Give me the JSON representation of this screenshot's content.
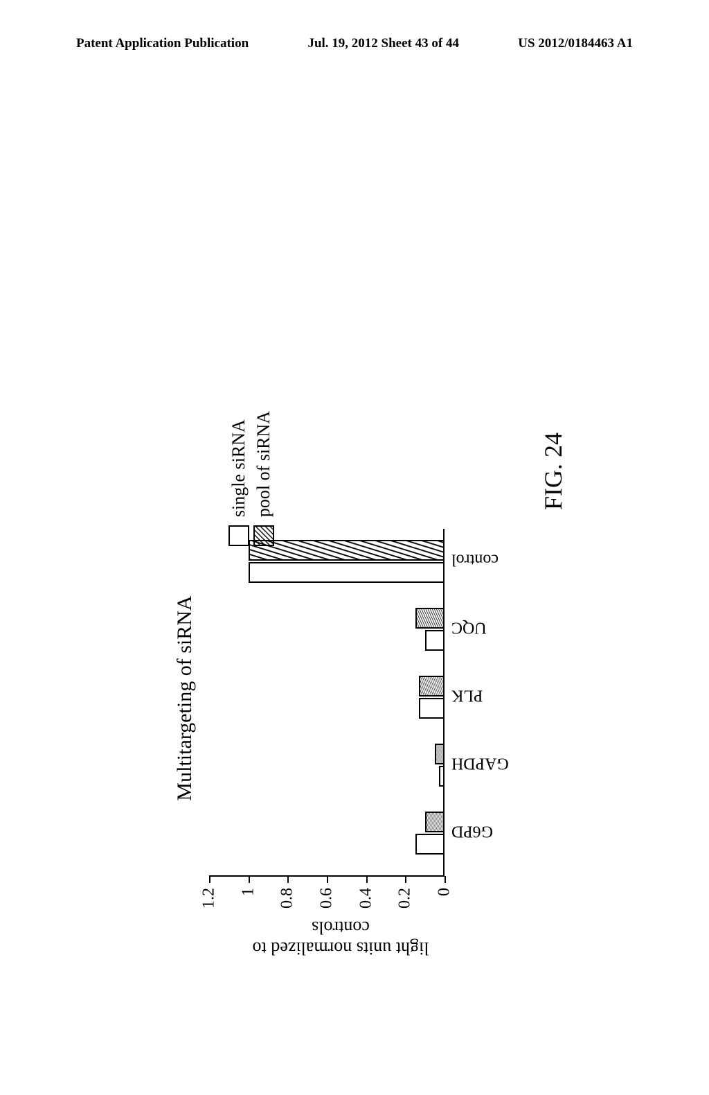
{
  "header": {
    "left": "Patent Application Publication",
    "center": "Jul. 19, 2012  Sheet 43 of 44",
    "right": "US 2012/0184463 A1"
  },
  "figure": {
    "caption": "FIG. 24",
    "chart": {
      "type": "bar",
      "title": "Multitargeting of siRNA",
      "y_axis_title": "light units normalized to\ncontrols",
      "ylim": [
        0,
        1.2
      ],
      "yticks": [
        0,
        0.2,
        0.4,
        0.6,
        0.8,
        1,
        1.2
      ],
      "categories": [
        "G6PD",
        "GAPDH",
        "PLK",
        "UQC",
        "control"
      ],
      "series": [
        {
          "name": "single siRNA",
          "values": [
            0.15,
            0.03,
            0.13,
            0.1,
            1.0
          ]
        },
        {
          "name": "pool of siRNA",
          "values": [
            0.1,
            0.05,
            0.13,
            0.15,
            1.0
          ]
        }
      ],
      "colors": {
        "bar_border": "#000000",
        "single_fill": "#ffffff",
        "pool_hatch": "#000000",
        "background": "#ffffff",
        "axis": "#000000"
      },
      "legend": {
        "items": [
          "single siRNA",
          "pool of siRNA"
        ],
        "position": "right"
      },
      "bar_group_positions": [
        30,
        128,
        226,
        324,
        422
      ],
      "title_fontsize": 30,
      "label_fontsize": 24,
      "axis_title_fontsize": 26
    }
  }
}
